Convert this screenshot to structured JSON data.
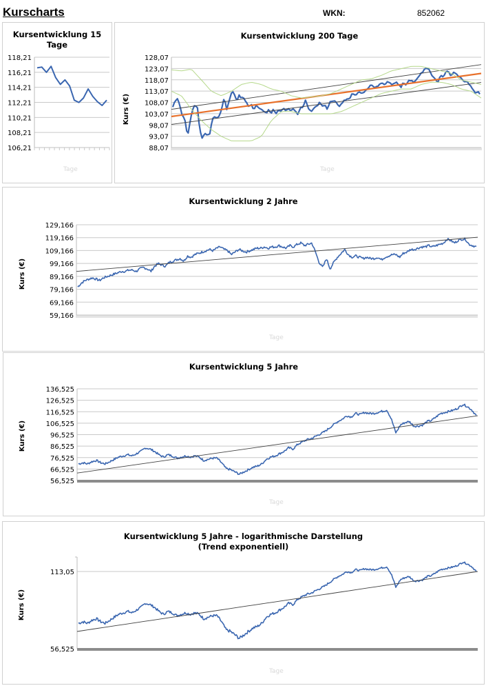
{
  "header": {
    "title": "Kurscharts",
    "wkn_label": "WKN:",
    "wkn_value": "852062"
  },
  "colors": {
    "price_line": "#3a66b0",
    "trend_line": "#404040",
    "regression_orange": "#e8702a",
    "band_green": "#b5d88a",
    "grid": "#c8c8c8"
  },
  "chart_data": [
    {
      "id": "c15",
      "type": "line",
      "title": "Kursentwicklung 15 Tage",
      "title_lines": [
        "Kursentwicklung 15",
        "Tage"
      ],
      "xlabel": "Tage",
      "ylabel": "",
      "yticks": [
        "118,21",
        "116,21",
        "114,21",
        "112,21",
        "110,21",
        "108,21",
        "106,21"
      ],
      "ylim": [
        106.21,
        118.21
      ],
      "grid": true,
      "series": [
        {
          "name": "Kurs",
          "values": [
            116.8,
            116.9,
            116.2,
            117.0,
            115.5,
            114.6,
            115.2,
            114.4,
            112.5,
            112.2,
            112.8,
            114.0,
            113.0,
            112.3,
            111.8,
            112.5
          ]
        }
      ]
    },
    {
      "id": "c200",
      "type": "line",
      "title": "Kursentwicklung 200 Tage",
      "xlabel": "Tage",
      "ylabel": "Kurs (€)",
      "yticks": [
        "128,07",
        "123,07",
        "118,07",
        "113,07",
        "108,07",
        "103,07",
        "98,07",
        "93,07",
        "88,07"
      ],
      "ylim": [
        88.07,
        128.07
      ],
      "grid": true,
      "series": [
        {
          "name": "Kurs",
          "values": [
            106,
            109,
            110,
            106,
            102,
            100,
            93,
            99,
            105,
            107,
            106,
            96,
            92,
            95,
            93,
            94,
            100,
            102,
            101,
            102,
            106,
            110,
            105,
            109,
            113,
            112,
            109,
            111,
            110,
            110,
            108,
            106,
            107,
            105,
            107,
            106,
            105,
            104,
            103,
            105,
            103,
            105,
            103,
            105,
            104,
            106,
            104,
            105,
            104,
            105,
            104,
            103,
            106,
            106,
            109,
            106,
            104,
            105,
            106,
            107,
            108,
            106,
            107,
            105,
            108,
            109,
            109,
            107,
            106,
            108,
            109,
            110,
            110,
            112,
            111,
            112,
            113,
            112,
            113,
            114,
            115,
            116,
            115,
            115,
            116,
            117,
            116,
            117,
            117,
            116,
            116,
            117,
            116,
            115,
            117,
            116,
            118,
            118,
            117,
            118,
            119,
            121,
            122,
            123,
            123,
            121,
            119,
            118,
            117,
            120,
            119,
            121,
            122,
            120,
            121,
            121,
            120,
            119,
            118,
            117,
            117,
            116,
            114,
            112,
            113,
            112
          ]
        },
        {
          "name": "Trend",
          "values": [
            101.8,
            120.9
          ]
        },
        {
          "name": "Trend upper",
          "values": [
            105.0,
            124.8
          ]
        },
        {
          "name": "Trend lower",
          "values": [
            98.3,
            116.9
          ]
        },
        {
          "name": "Band upper",
          "values": [
            122.5,
            122,
            122.8,
            118,
            113,
            111,
            113,
            116,
            117,
            116,
            114,
            113,
            111,
            110,
            110.5,
            111,
            112,
            114,
            116,
            118,
            118.5,
            120,
            122,
            123,
            124,
            124,
            123,
            122,
            121,
            118,
            117,
            116
          ]
        },
        {
          "name": "Band lower",
          "values": [
            113,
            111,
            105,
            100,
            96,
            93,
            91,
            91,
            91,
            93,
            100,
            104,
            104,
            103,
            103,
            103,
            103,
            104,
            106,
            108,
            110,
            112,
            113,
            114,
            114,
            116,
            117,
            117,
            116,
            114,
            113,
            110
          ]
        }
      ]
    },
    {
      "id": "c2y",
      "type": "line",
      "title": "Kursentwicklung 2 Jahre",
      "xlabel": "Tage",
      "ylabel": "Kurs (€)",
      "yticks": [
        "129,166",
        "119,166",
        "109,166",
        "99,166",
        "89,166",
        "79,166",
        "69,166",
        "59,166"
      ],
      "ylim": [
        59.166,
        129.166
      ],
      "grid": true,
      "series": [
        {
          "name": "Kurs",
          "values": [
            81,
            84,
            86,
            87,
            88,
            87,
            86,
            88,
            89,
            90,
            91,
            92,
            93,
            93,
            94,
            94,
            93,
            95,
            96,
            95,
            93,
            97,
            99,
            98,
            97,
            100,
            101,
            102,
            103,
            101,
            105,
            104,
            106,
            107,
            108,
            109,
            110,
            109,
            111,
            112,
            110,
            109,
            106,
            108,
            110,
            109,
            108,
            109,
            110,
            111,
            111,
            112,
            111,
            112,
            112,
            113,
            112,
            111,
            113,
            112,
            114,
            115,
            113,
            114,
            115,
            108,
            100,
            96,
            103,
            95,
            100,
            104,
            107,
            110,
            106,
            104,
            105,
            104,
            103,
            104,
            103,
            103,
            104,
            102,
            104,
            105,
            106,
            106,
            104,
            107,
            108,
            110,
            110,
            111,
            112,
            112,
            113,
            112,
            113,
            114,
            115,
            118,
            117,
            115,
            117,
            118,
            118,
            114,
            113,
            112
          ]
        },
        {
          "name": "Trend",
          "values": [
            93.0,
            119.5
          ]
        }
      ]
    },
    {
      "id": "c5y",
      "type": "line",
      "title": "Kursentwicklung 5 Jahre",
      "xlabel": "Tage",
      "ylabel": "Kurs (€)",
      "yticks": [
        "136,525",
        "126,525",
        "116,525",
        "106,525",
        "96,525",
        "86,525",
        "76,525",
        "66,525",
        "56,525"
      ],
      "ylim": [
        56.525,
        136.525
      ],
      "grid": true,
      "series": [
        {
          "name": "Kurs",
          "values": [
            71,
            72,
            71,
            73,
            74,
            72,
            71,
            73,
            75,
            77,
            78,
            79,
            78,
            80,
            82,
            85,
            84,
            82,
            79,
            77,
            79,
            78,
            76,
            77,
            78,
            77,
            78,
            77,
            74,
            75,
            76,
            76,
            72,
            67,
            66,
            64,
            62,
            64,
            66,
            68,
            69,
            71,
            75,
            77,
            78,
            80,
            82,
            85,
            84,
            88,
            90,
            92,
            93,
            95,
            97,
            99,
            102,
            105,
            108,
            110,
            113,
            112,
            115,
            114,
            116,
            115,
            115,
            116,
            117,
            118,
            110,
            98,
            105,
            107,
            108,
            104,
            104,
            105,
            108,
            109,
            112,
            115,
            116,
            117,
            118,
            120,
            123,
            121,
            118,
            113
          ]
        },
        {
          "name": "Trend",
          "values": [
            63.0,
            113.0
          ]
        }
      ]
    },
    {
      "id": "c5ylog",
      "type": "line",
      "title": "Kursentwicklung 5 Jahre - logarithmische Darstellung",
      "subtitle": "(Trend exponentiell)",
      "xlabel": "Tage",
      "ylabel": "Kurs (€)",
      "yscale": "log",
      "yticks": [
        "113,05",
        "56,525"
      ],
      "ylim": [
        56.525,
        113.05
      ],
      "grid": true,
      "series": [
        {
          "name": "Kurs",
          "values": [
            71,
            72,
            71,
            73,
            74,
            72,
            71,
            73,
            75,
            77,
            78,
            79,
            78,
            80,
            82,
            85,
            84,
            82,
            79,
            77,
            79,
            78,
            76,
            77,
            78,
            77,
            78,
            77,
            74,
            75,
            76,
            76,
            72,
            67,
            66,
            64,
            62,
            64,
            66,
            68,
            69,
            71,
            75,
            77,
            78,
            80,
            82,
            85,
            84,
            88,
            90,
            92,
            93,
            95,
            97,
            99,
            102,
            105,
            108,
            110,
            113,
            112,
            115,
            114,
            116,
            115,
            115,
            116,
            117,
            118,
            110,
            98,
            105,
            107,
            108,
            104,
            104,
            105,
            108,
            109,
            112,
            115,
            116,
            117,
            118,
            120,
            123,
            121,
            118,
            113
          ]
        },
        {
          "name": "Trend",
          "values": [
            66.0,
            113.0
          ]
        }
      ]
    }
  ]
}
